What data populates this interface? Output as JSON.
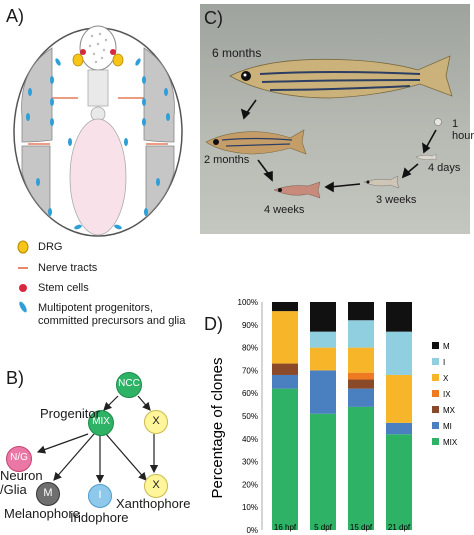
{
  "panels": {
    "a_label": "A)",
    "b_label": "B)",
    "c_label": "C)",
    "d_label": "D)"
  },
  "legend_a": {
    "items": [
      {
        "icon": "drg-icon",
        "label": "DRG",
        "color": "#f5c518"
      },
      {
        "icon": "nerve-tract-icon",
        "label": "Nerve tracts",
        "color": "#e2613b"
      },
      {
        "icon": "stem-cell-icon",
        "label": "Stem cells",
        "color": "#d8283f"
      },
      {
        "icon": "progenitor-icon",
        "label": "Multipotent progenitors, committed precursors and glia",
        "color": "#2f9fd8"
      }
    ]
  },
  "lineage_b": {
    "nodes": {
      "ncc": "NCC",
      "mix": "MIX",
      "x": "X",
      "ng": "N/G",
      "m": "M",
      "i": "I",
      "x2": "X"
    },
    "labels": {
      "progenitor": "Progenitor",
      "neuron_glia_1": "Neuron",
      "neuron_glia_2": "/Glia",
      "melanophore": "Melanophore",
      "iridophore": "Iridophore",
      "xanthophore": "Xanthophore"
    }
  },
  "photo_c": {
    "background": "#b3b6b0",
    "stages": {
      "six_months": "6 months",
      "two_months": "2 months",
      "four_weeks": "4 weeks",
      "three_weeks": "3 weeks",
      "four_days": "4 days",
      "one_hour": "1 hour"
    }
  },
  "chart_data": {
    "type": "bar",
    "stacked": true,
    "categories": [
      "16 hpf",
      "5 dpf",
      "15 dpf",
      "21 dpf"
    ],
    "ylabel": "Percentage of clones",
    "ylim": [
      0,
      100
    ],
    "yticks": [
      "0%",
      "10%",
      "20%",
      "30%",
      "40%",
      "50%",
      "60%",
      "70%",
      "80%",
      "90%",
      "100%"
    ],
    "legend_position": "right",
    "series": [
      {
        "name": "MIX",
        "color": "#2eb366",
        "values": [
          62,
          51,
          54,
          42
        ]
      },
      {
        "name": "MI",
        "color": "#4a7fc0",
        "values": [
          6,
          19,
          8,
          5
        ]
      },
      {
        "name": "MX",
        "color": "#8a4a2a",
        "values": [
          5,
          0,
          4,
          0
        ]
      },
      {
        "name": "IX",
        "color": "#ee7a22",
        "values": [
          0,
          0,
          3,
          0
        ]
      },
      {
        "name": "X",
        "color": "#f7b52a",
        "values": [
          23,
          10,
          11,
          21
        ]
      },
      {
        "name": "I",
        "color": "#8fcfe0",
        "values": [
          0,
          7,
          12,
          19
        ]
      },
      {
        "name": "M",
        "color": "#111111",
        "values": [
          4,
          13,
          8,
          13
        ]
      }
    ]
  }
}
